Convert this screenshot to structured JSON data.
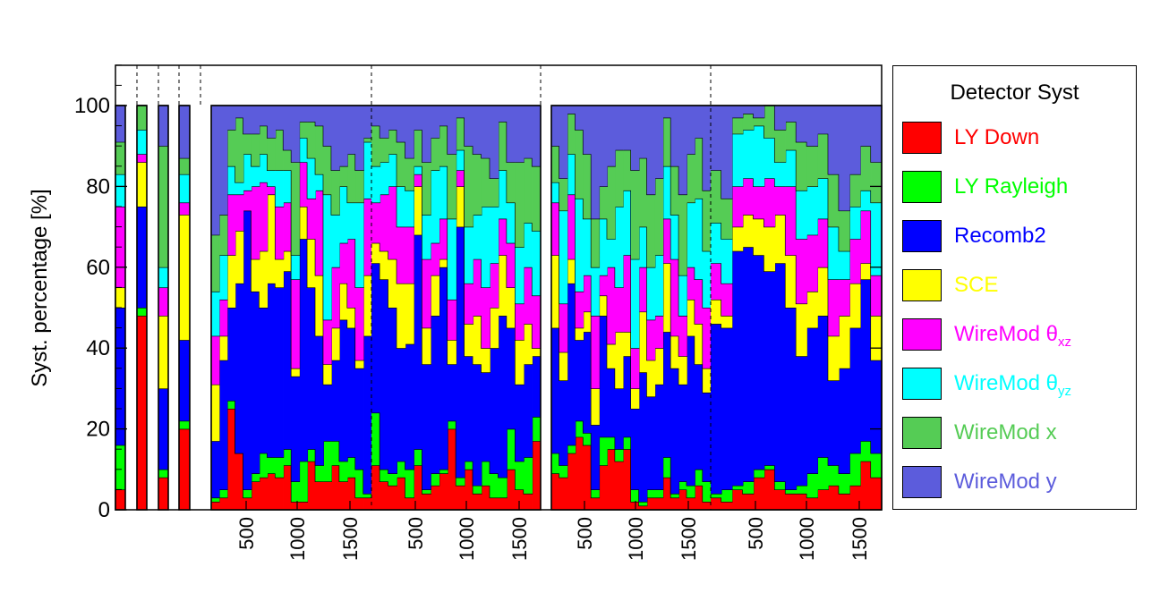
{
  "chart_data": {
    "type": "bar",
    "stacked": true,
    "normalized_percent": true,
    "ylabel": "Syst. percentage [%]",
    "ylim": [
      0,
      110
    ],
    "yticks": [
      0,
      20,
      40,
      60,
      80,
      100
    ],
    "x_tick_labels": [
      "500",
      "1000",
      "1500",
      "500",
      "1000",
      "1500",
      "500",
      "1000",
      "1500",
      "500",
      "1000",
      "1500"
    ],
    "legend": {
      "title": "Detector Syst",
      "entries": [
        {
          "key": "ly_down",
          "label": "LY Down",
          "sub": "",
          "color": "#ff0000"
        },
        {
          "key": "ly_rayleigh",
          "label": "LY Rayleigh",
          "sub": "",
          "color": "#00ff00"
        },
        {
          "key": "recomb2",
          "label": "Recomb2",
          "sub": "",
          "color": "#0000ff"
        },
        {
          "key": "sce",
          "label": "SCE",
          "sub": "",
          "color": "#ffff00"
        },
        {
          "key": "wiremod_thetaxz",
          "label": "WireMod θ",
          "sub": "xz",
          "color": "#ff00ff"
        },
        {
          "key": "wiremod_thetayz",
          "label": "WireMod θ",
          "sub": "yz",
          "color": "#00ffff"
        },
        {
          "key": "wiremod_x",
          "label": "WireMod x",
          "sub": "",
          "color": "#55cc55"
        },
        {
          "key": "wiremod_y",
          "label": "WireMod y",
          "sub": "",
          "color": "#5c5cdc"
        }
      ]
    },
    "series_order": [
      "LY Down",
      "LY Rayleigh",
      "Recomb2",
      "SCE",
      "WireMod θxz",
      "WireMod θyz",
      "WireMod x",
      "WireMod y"
    ],
    "groups": [
      {
        "name": "single 1",
        "cumulative_tops": [
          [
            5,
            16,
            50,
            55,
            75,
            83,
            91,
            100
          ]
        ]
      },
      {
        "name": "single 2",
        "cumulative_tops": [
          [
            48,
            50,
            75,
            86,
            88,
            94,
            100,
            100
          ]
        ]
      },
      {
        "name": "single 3",
        "cumulative_tops": [
          [
            8,
            10,
            30,
            48,
            55,
            60,
            90,
            100
          ]
        ]
      },
      {
        "name": "single 4",
        "cumulative_tops": [
          [
            20,
            22,
            42,
            73,
            76,
            83,
            87,
            100
          ]
        ]
      },
      {
        "name": "panel 1",
        "cumulative_tops": [
          [
            2,
            3,
            17,
            31,
            43,
            54,
            68,
            100
          ],
          [
            3,
            5,
            37,
            43,
            52,
            63,
            73,
            100
          ],
          [
            25,
            27,
            50,
            63,
            78,
            85,
            94,
            100
          ],
          [
            14,
            14,
            56,
            69,
            78,
            81,
            97,
            100
          ],
          [
            3,
            5,
            74,
            74,
            79,
            88,
            93,
            100
          ],
          [
            7,
            9,
            54,
            62,
            80,
            85,
            93,
            100
          ],
          [
            8,
            14,
            50,
            64,
            81,
            88,
            95,
            100
          ],
          [
            9,
            13,
            56,
            78,
            80,
            84,
            92,
            100
          ],
          [
            8,
            13,
            55,
            62,
            75,
            84,
            94,
            100
          ],
          [
            11,
            15,
            59,
            64,
            76,
            84,
            89,
            100
          ],
          [
            2,
            7,
            33,
            35,
            57,
            63,
            86,
            100
          ],
          [
            2,
            12,
            67,
            75,
            86,
            92,
            96,
            100
          ],
          [
            12,
            15,
            55,
            67,
            77,
            87,
            96,
            100
          ],
          [
            7,
            11,
            43,
            58,
            79,
            83,
            95,
            100
          ],
          [
            7,
            17,
            31,
            36,
            47,
            78,
            90,
            100
          ],
          [
            11,
            17,
            37,
            45,
            60,
            73,
            84,
            100
          ],
          [
            7,
            12,
            47,
            56,
            66,
            80,
            85,
            100
          ],
          [
            8,
            13,
            45,
            50,
            67,
            76,
            88,
            100
          ],
          [
            3,
            10,
            35,
            37,
            55,
            76,
            84,
            100
          ],
          [
            3,
            4,
            43,
            58,
            77,
            91,
            92,
            100
          ]
        ]
      },
      {
        "name": "panel 2",
        "cumulative_tops": [
          [
            11,
            24,
            61,
            66,
            76,
            85,
            95,
            100
          ],
          [
            7,
            10,
            57,
            64,
            78,
            86,
            92,
            100
          ],
          [
            6,
            9,
            50,
            62,
            80,
            88,
            94,
            100
          ],
          [
            8,
            12,
            40,
            56,
            70,
            80,
            91,
            100
          ],
          [
            3,
            10,
            41,
            56,
            70,
            79,
            87,
            100
          ],
          [
            11,
            15,
            68,
            80,
            83,
            85,
            94,
            100
          ],
          [
            4,
            5,
            36,
            45,
            62,
            73,
            86,
            100
          ],
          [
            6,
            9,
            48,
            58,
            66,
            84,
            92,
            100
          ],
          [
            9,
            10,
            60,
            62,
            72,
            85,
            95,
            100
          ],
          [
            20,
            22,
            36,
            42,
            52,
            72,
            88,
            100
          ],
          [
            6,
            8,
            70,
            80,
            84,
            89,
            97,
            100
          ],
          [
            10,
            12,
            38,
            46,
            56,
            70,
            90,
            100
          ],
          [
            4,
            6,
            36,
            48,
            62,
            73,
            88,
            100
          ],
          [
            6,
            12,
            34,
            40,
            55,
            75,
            87,
            100
          ],
          [
            3,
            9,
            40,
            50,
            61,
            75,
            82,
            100
          ],
          [
            3,
            8,
            48,
            63,
            72,
            84,
            96,
            100
          ],
          [
            10,
            20,
            45,
            55,
            66,
            76,
            86,
            100
          ],
          [
            5,
            12,
            31,
            42,
            51,
            65,
            86,
            100
          ],
          [
            4,
            13,
            36,
            46,
            60,
            71,
            87,
            100
          ],
          [
            17,
            23,
            38,
            40,
            53,
            69,
            85,
            100
          ]
        ]
      },
      {
        "name": "panel 3",
        "cumulative_tops": [
          [
            9,
            14,
            45,
            63,
            76,
            81,
            90,
            100
          ],
          [
            8,
            11,
            32,
            39,
            51,
            74,
            82,
            100
          ],
          [
            14,
            16,
            56,
            62,
            78,
            88,
            98,
            100
          ],
          [
            18,
            22,
            42,
            45,
            54,
            77,
            94,
            100
          ],
          [
            16,
            19,
            44,
            49,
            58,
            72,
            88,
            100
          ],
          [
            3,
            5,
            21,
            30,
            48,
            60,
            72,
            100
          ],
          [
            11,
            18,
            48,
            53,
            58,
            72,
            80,
            100
          ],
          [
            15,
            18,
            35,
            41,
            60,
            67,
            85,
            100
          ],
          [
            12,
            15,
            30,
            44,
            55,
            75,
            89,
            100
          ],
          [
            15,
            18,
            38,
            44,
            63,
            79,
            89,
            100
          ],
          [
            2,
            5,
            25,
            30,
            40,
            62,
            84,
            100
          ],
          [
            1,
            2,
            34,
            49,
            60,
            70,
            87,
            100
          ],
          [
            3,
            5,
            28,
            37,
            47,
            60,
            78,
            100
          ],
          [
            3,
            5,
            31,
            40,
            48,
            63,
            82,
            100
          ],
          [
            8,
            13,
            44,
            61,
            72,
            85,
            97,
            100
          ],
          [
            3,
            4,
            35,
            43,
            62,
            73,
            85,
            100
          ],
          [
            5,
            7,
            31,
            38,
            48,
            58,
            78,
            100
          ],
          [
            3,
            6,
            43,
            52,
            60,
            76,
            88,
            100
          ],
          [
            6,
            10,
            36,
            46,
            57,
            77,
            92,
            100
          ],
          [
            2,
            7,
            29,
            35,
            50,
            64,
            79,
            100
          ]
        ]
      },
      {
        "name": "panel 4",
        "cumulative_tops": [
          [
            3,
            4,
            46,
            52,
            61,
            71,
            84,
            100
          ],
          [
            2,
            5,
            45,
            48,
            56,
            67,
            77,
            100
          ],
          [
            5,
            6,
            64,
            70,
            80,
            93,
            97,
            100
          ],
          [
            4,
            7,
            65,
            73,
            82,
            94,
            98,
            100
          ],
          [
            8,
            10,
            63,
            72,
            80,
            95,
            97,
            100
          ],
          [
            10,
            11,
            59,
            70,
            82,
            92,
            100,
            100
          ],
          [
            5,
            7,
            61,
            73,
            80,
            86,
            94,
            100
          ],
          [
            4,
            5,
            50,
            63,
            80,
            89,
            96,
            100
          ],
          [
            4,
            6,
            38,
            51,
            67,
            79,
            91,
            100
          ],
          [
            3,
            9,
            45,
            54,
            68,
            80,
            90,
            100
          ],
          [
            5,
            13,
            48,
            60,
            72,
            82,
            93,
            100
          ],
          [
            6,
            11,
            32,
            43,
            57,
            70,
            83,
            100
          ],
          [
            4,
            9,
            35,
            48,
            57,
            64,
            74,
            100
          ],
          [
            6,
            14,
            45,
            56,
            67,
            75,
            83,
            100
          ],
          [
            12,
            17,
            57,
            61,
            74,
            79,
            90,
            100
          ],
          [
            8,
            14,
            37,
            48,
            58,
            76,
            86,
            100
          ]
        ]
      }
    ]
  }
}
